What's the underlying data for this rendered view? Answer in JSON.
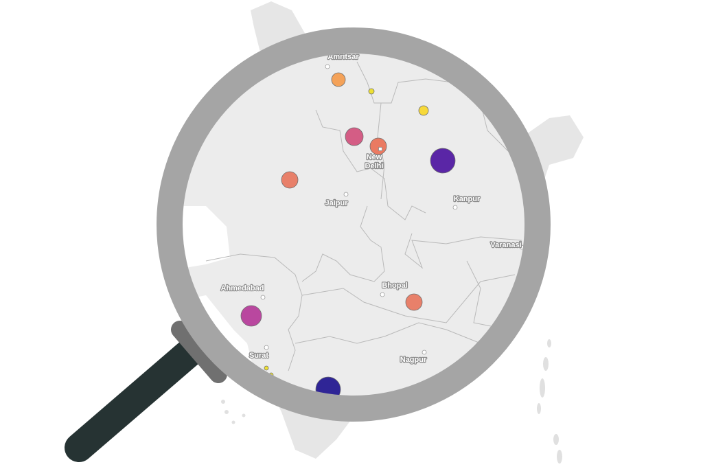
{
  "cities": [
    {
      "name": "Amritsar"
    },
    {
      "name": "New Delhi",
      "lines": [
        "New",
        "Delhi"
      ],
      "capital": true
    },
    {
      "name": "Jaipur"
    },
    {
      "name": "Kanpur"
    },
    {
      "name": "Varanasi"
    },
    {
      "name": "Bhopal"
    },
    {
      "name": "Ahmedabad"
    },
    {
      "name": "Surat"
    },
    {
      "name": "Nagpur"
    }
  ],
  "bubbles": [
    {
      "color": "#f4a259"
    },
    {
      "color": "#eee033"
    },
    {
      "color": "#f7d93a"
    },
    {
      "color": "#d45d85"
    },
    {
      "color": "#ea7a62"
    },
    {
      "color": "#5a26a6"
    },
    {
      "color": "#e8806a"
    },
    {
      "color": "#e8806a"
    },
    {
      "color": "#b9479f"
    },
    {
      "color": "#2f2596"
    },
    {
      "color": "#eee033"
    },
    {
      "color": "#eee033"
    }
  ],
  "colors": {
    "land": "#e6e6e6",
    "land_in_lens": "#ececec",
    "lens_ring": "#a5a5a5",
    "collar": "#707070",
    "handle": "#263333"
  },
  "icons": {
    "overlay": "magnifying-glass-icon"
  }
}
